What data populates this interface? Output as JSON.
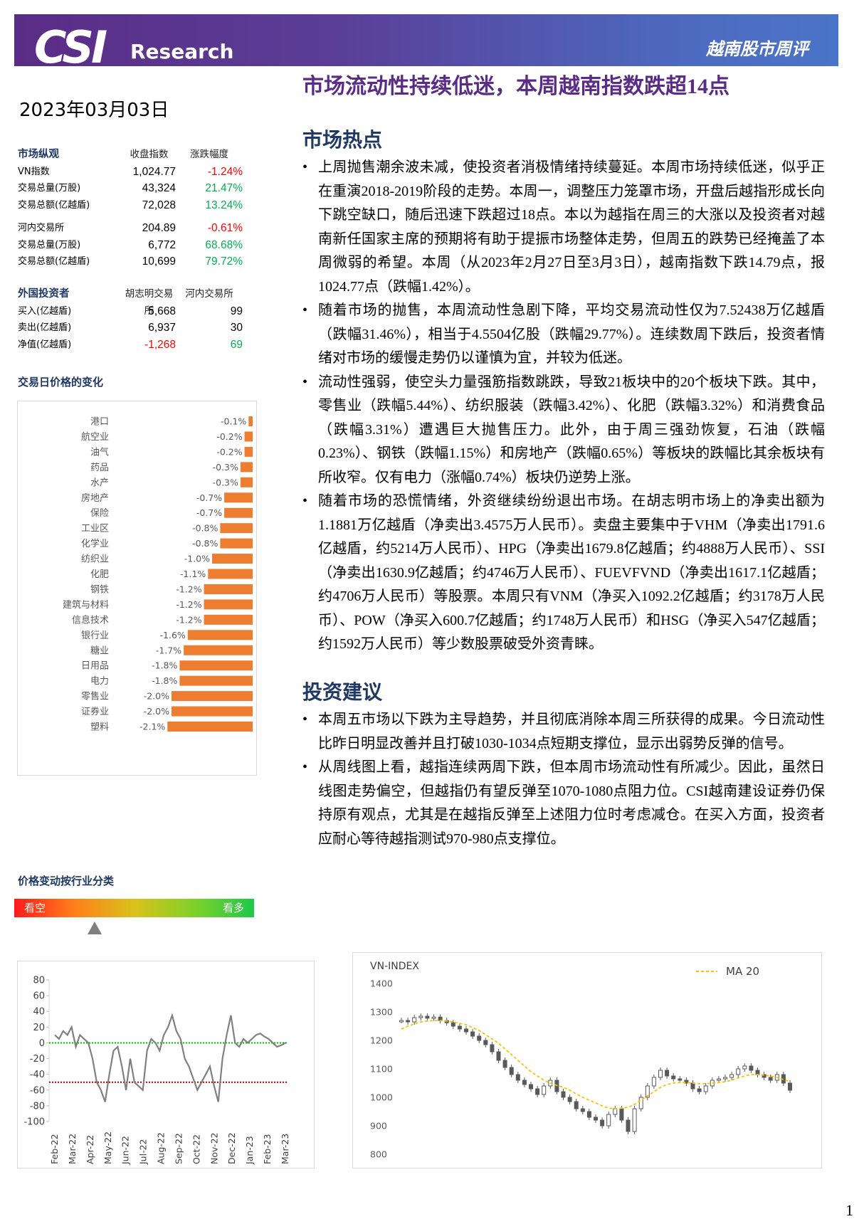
{
  "header": {
    "logo": "CSI",
    "brand": "Research",
    "report": "越南股市周评"
  },
  "headline": "市场流动性持续低迷，本周越南指数跌超14点",
  "date": "2023年03月03日",
  "negative_color": "#ff0000",
  "positive_color": "#00b050",
  "market_table": {
    "columns": [
      "市场纵观",
      "收盘指数",
      "涨跌幅度"
    ],
    "groups": [
      [
        [
          "VN指数",
          "1,024.77",
          "-1.24%"
        ],
        [
          "交易总量(万股)",
          "43,324",
          "21.47%"
        ],
        [
          "交易总额(亿越盾)",
          "72,028",
          "13.24%"
        ]
      ],
      [
        [
          "河内交易所",
          "204.89",
          "-0.61%"
        ],
        [
          "交易总量(万股)",
          "6,772",
          "68.68%"
        ],
        [
          "交易总额(亿越盾)",
          "10,699",
          "79.72%"
        ]
      ]
    ]
  },
  "foreign_table": {
    "columns": [
      "外国投资者",
      "胡志明交易所",
      "河内交易所"
    ],
    "rows": [
      [
        "买入(亿越盾)",
        "5,668",
        "99"
      ],
      [
        "卖出(亿越盾)",
        "6,937",
        "30"
      ],
      [
        "净值(亿越盾)",
        "-1,268",
        "69"
      ]
    ]
  },
  "sector_chart": {
    "title": "交易日价格的变化",
    "chart_data": {
      "type": "bar",
      "orientation": "horizontal",
      "categories": [
        "港口",
        "航空业",
        "油气",
        "药品",
        "水产",
        "房地产",
        "保险",
        "工业区",
        "化学业",
        "纺织业",
        "化肥",
        "钢铁",
        "建筑与材料",
        "信息技术",
        "银行业",
        "糖业",
        "日用品",
        "电力",
        "零售业",
        "证券业",
        "塑料"
      ],
      "values": [
        -0.1,
        -0.2,
        -0.2,
        -0.3,
        -0.3,
        -0.7,
        -0.7,
        -0.8,
        -0.8,
        -1.0,
        -1.1,
        -1.2,
        -1.2,
        -1.2,
        -1.6,
        -1.7,
        -1.8,
        -1.8,
        -2.0,
        -2.0,
        -2.1
      ],
      "value_labels": [
        "-0.1%",
        "-0.2%",
        "-0.2%",
        "-0.3%",
        "-0.3%",
        "-0.7%",
        "-0.7%",
        "-0.8%",
        "-0.8%",
        "-1.0%",
        "-1.1%",
        "-1.2%",
        "-1.2%",
        "-1.2%",
        "-1.6%",
        "-1.7%",
        "-1.8%",
        "-1.8%",
        "-2.0%",
        "-2.0%",
        "-2.1%"
      ],
      "color": "#ed7d31"
    }
  },
  "sentiment": {
    "title": "价格变动按行业分类",
    "bear": "看空",
    "bull": "看多",
    "chart_data": {
      "type": "line",
      "x_labels": [
        "Feb-22",
        "Mar-22",
        "Apr-22",
        "May-22",
        "Jun-22",
        "Jul-22",
        "Aug-22",
        "Sep-22",
        "Oct-22",
        "Nov-22",
        "Dec-22",
        "Jan-23",
        "Feb-23",
        "Mar-23"
      ],
      "values": [
        10,
        5,
        15,
        10,
        20,
        -5,
        10,
        5,
        0,
        -20,
        -50,
        -60,
        -75,
        -40,
        -10,
        -5,
        -30,
        -60,
        -20,
        -50,
        -55,
        -60,
        -10,
        5,
        0,
        -10,
        10,
        20,
        35,
        15,
        5,
        -20,
        -30,
        -45,
        -60,
        -50,
        -40,
        -30,
        -55,
        -75,
        -20,
        10,
        35,
        0,
        -5,
        5,
        0,
        5,
        10,
        12,
        8,
        5,
        0,
        -5,
        -3,
        0
      ],
      "color": "#808080",
      "ylim": [
        -100,
        80
      ],
      "yticks": [
        -100,
        -80,
        -60,
        -40,
        -20,
        0,
        20,
        40,
        60,
        80
      ],
      "reference_lines": [
        {
          "value": 0,
          "color": "#00c000"
        },
        {
          "value": -50,
          "color": "#c00000"
        }
      ]
    }
  },
  "vnindex": {
    "chart_data": {
      "type": "candlestick",
      "title": "VN-INDEX",
      "close": [
        1270,
        1265,
        1280,
        1285,
        1278,
        1282,
        1270,
        1262,
        1250,
        1240,
        1230,
        1215,
        1200,
        1185,
        1160,
        1130,
        1105,
        1080,
        1060,
        1045,
        1030,
        1010,
        1040,
        1060,
        1020,
        1000,
        985,
        960,
        950,
        930,
        920,
        900,
        940,
        960,
        920,
        880,
        960,
        1000,
        1040,
        1070,
        1095,
        1075,
        1065,
        1060,
        1050,
        1030,
        1020,
        1040,
        1060,
        1065,
        1070,
        1080,
        1100,
        1110,
        1095,
        1080,
        1070,
        1060,
        1080,
        1050,
        1025
      ],
      "color": "#595959",
      "series": [
        {
          "name": "MA 20",
          "color": "#ffc000",
          "values": [
            1240,
            1250,
            1258,
            1265,
            1268,
            1270,
            1270,
            1268,
            1265,
            1260,
            1255,
            1245,
            1235,
            1220,
            1205,
            1190,
            1170,
            1150,
            1130,
            1110,
            1090,
            1075,
            1060,
            1050,
            1042,
            1035,
            1025,
            1012,
            1000,
            990,
            980,
            970,
            962,
            960,
            962,
            965,
            975,
            990,
            1005,
            1020,
            1035,
            1045,
            1050,
            1052,
            1052,
            1050,
            1048,
            1048,
            1050,
            1052,
            1055,
            1060,
            1068,
            1075,
            1080,
            1080,
            1078,
            1075,
            1070,
            1062,
            1055
          ]
        }
      ],
      "ylim": [
        800,
        1400
      ],
      "yticks": [
        800,
        900,
        1000,
        1100,
        1200,
        1300,
        1400
      ],
      "legend": "top-right"
    }
  },
  "sections": [
    {
      "heading": "市场热点",
      "bullets": [
        "上周抛售潮余波未减，使投资者消极情绪持续蔓延。本周市场持续低迷，似乎正在重演2018-2019阶段的走势。本周一，调整压力笼罩市场，开盘后越指形成长向下跳空缺口，随后迅速下跌超过18点。本以为越指在周三的大涨以及投资者对越南新任国家主席的预期将有助于提振市场整体走势，但周五的跌势已经掩盖了本周微弱的希望。本周（从2023年2月27日至3月3日），越南指数下跌14.79点，报1024.77点（跌幅1.42%）。",
        "随着市场的抛售，本周流动性急剧下降，平均交易流动性仅为7.52438万亿越盾（跌幅31.46%），相当于4.5504亿股（跌幅29.77%）。连续数周下跌后，投资者情绪对市场的缓慢走势仍以谨慎为宜，并较为低迷。",
        "流动性强弱，使空头力量强筋指数跳跌，导致21板块中的20个板块下跌。其中，零售业（跌幅5.44%）、纺织服装（跌幅3.42%）、化肥（跌幅3.32%）和消费食品（跌幅3.31%）遭遇巨大抛售压力。此外，由于周三强劲恢复，石油（跌幅0.23%）、钢铁（跌幅1.15%）和房地产（跌幅0.65%）等板块的跌幅比其余板块有所收窄。仅有电力（涨幅0.74%）板块仍逆势上涨。",
        "随着市场的恐慌情绪，外资继续纷纷退出市场。在胡志明市场上的净卖出额为1.1881万亿越盾（净卖出3.4575万人民币）。卖盘主要集中于VHM（净卖出1791.6亿越盾，约5214万人民币）、HPG（净卖出1679.8亿越盾；约4888万人民币）、SSI（净卖出1630.9亿越盾；约4746万人民币）、FUEVFVND（净卖出1617.1亿越盾；约4706万人民币）等股票。本周只有VNM（净买入1092.2亿越盾；约3178万人民币）、POW（净买入600.7亿越盾；约1748万人民币）和HSG（净买入547亿越盾；约1592万人民币）等少数股票破受外资青睐。"
      ]
    },
    {
      "heading": "投资建议",
      "bullets": [
        "本周五市场以下跌为主导趋势，并且彻底消除本周三所获得的成果。今日流动性比昨日明显改善并且打破1030-1034点短期支撑位，显示出弱势反弹的信号。",
        "从周线图上看，越指连续两周下跌，但本周市场流动性有所减少。因此，虽然日线图走势偏空，但越指仍有望反弹至1070-1080点阻力位。CSI越南建设证券仍保持原有观点，尤其是在越指反弹至上述阻力位时考虑减仓。在买入方面，投资者应耐心等待越指测试970-980点支撑位。"
      ]
    }
  ],
  "page_number": "1"
}
